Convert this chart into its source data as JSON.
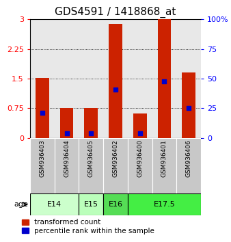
{
  "title": "GDS4591 / 1418868_at",
  "samples": [
    "GSM936403",
    "GSM936404",
    "GSM936405",
    "GSM936402",
    "GSM936400",
    "GSM936401",
    "GSM936406"
  ],
  "transformed_count": [
    1.52,
    0.75,
    0.75,
    2.88,
    0.62,
    3.0,
    1.65
  ],
  "percentile_rank_pct": [
    21,
    4,
    4,
    41,
    4,
    48,
    25
  ],
  "age_group_spans": [
    {
      "label": "E14",
      "start": 0,
      "end": 2,
      "color": "#ccffcc"
    },
    {
      "label": "E15",
      "start": 2,
      "end": 3,
      "color": "#bbffbb"
    },
    {
      "label": "E16",
      "start": 3,
      "end": 4,
      "color": "#55dd55"
    },
    {
      "label": "E17.5",
      "start": 4,
      "end": 7,
      "color": "#44ee44"
    }
  ],
  "ylim_left": [
    0,
    3
  ],
  "ylim_right": [
    0,
    100
  ],
  "yticks_left": [
    0,
    0.75,
    1.5,
    2.25,
    3
  ],
  "yticks_right": [
    0,
    25,
    50,
    75,
    100
  ],
  "bar_color": "#cc2200",
  "dot_color": "#0000cc",
  "bar_width": 0.55,
  "sample_box_color": "#c8c8c8",
  "background_color": "#e8e8e8",
  "legend_red_label": "transformed count",
  "legend_blue_label": "percentile rank within the sample",
  "age_label": "age",
  "title_fontsize": 11,
  "axis_fontsize": 8,
  "sample_fontsize": 6.5,
  "age_fontsize": 8
}
